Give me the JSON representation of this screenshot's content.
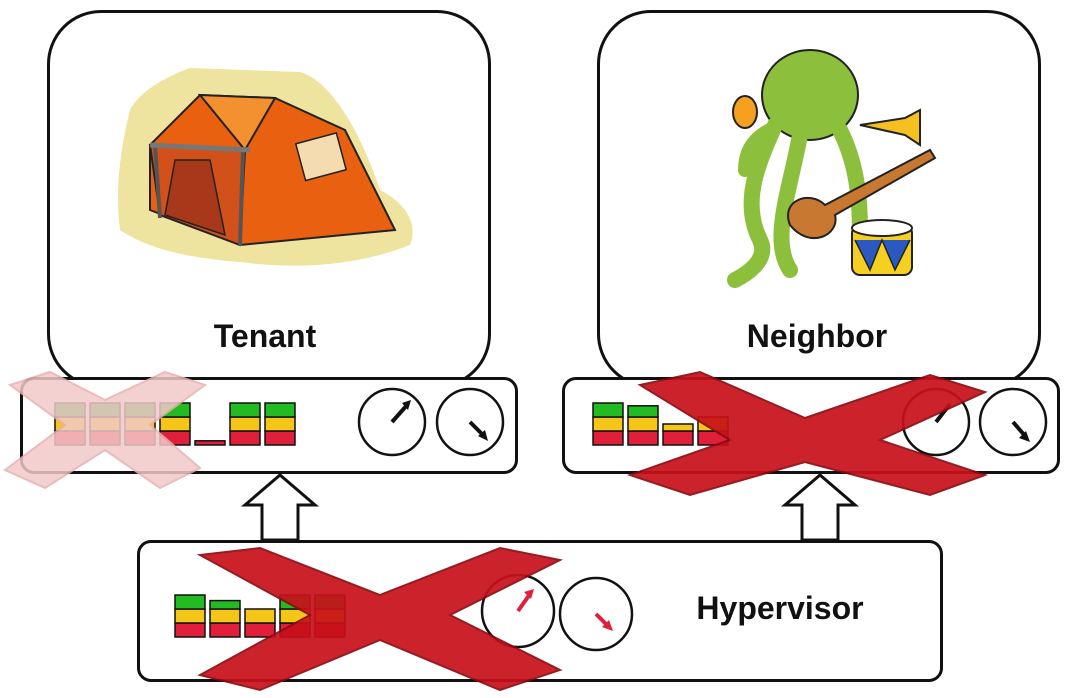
{
  "tenant": {
    "label": "Tenant",
    "icon": "tent-icon"
  },
  "neighbor": {
    "label": "Neighbor",
    "icon": "octopus-musician-icon"
  },
  "hypervisor": {
    "label": "Hypervisor"
  },
  "colors": {
    "green": "#22bb22",
    "yellow": "#f5c518",
    "red": "#e0203a",
    "cross_red": "#c8101a",
    "cross_faded": "#f2c9c9"
  },
  "tenant_meters": [
    {
      "green": 1,
      "yellow": 1,
      "red": 1
    },
    {
      "green": 1,
      "yellow": 1,
      "red": 1
    },
    {
      "green": 1,
      "yellow": 1,
      "red": 1
    },
    {
      "green": 1,
      "yellow": 1,
      "red": 1
    },
    {
      "green": 0,
      "yellow": 0,
      "red": 0.3
    },
    {
      "green": 1,
      "yellow": 1,
      "red": 1
    },
    {
      "green": 1,
      "yellow": 1,
      "red": 1
    }
  ],
  "neighbor_meters": [
    {
      "green": 1,
      "yellow": 1,
      "red": 1
    },
    {
      "green": 0.8,
      "yellow": 1,
      "red": 1
    },
    {
      "green": 0,
      "yellow": 0.5,
      "red": 1
    },
    {
      "green": 0,
      "yellow": 1,
      "red": 1
    }
  ],
  "hypervisor_meters": [
    {
      "green": 1,
      "yellow": 1,
      "red": 1
    },
    {
      "green": 0.6,
      "yellow": 1,
      "red": 1
    },
    {
      "green": 0,
      "yellow": 1,
      "red": 1
    },
    {
      "green": 1,
      "yellow": 1,
      "red": 1
    },
    {
      "green": 1,
      "yellow": 1,
      "red": 1
    }
  ]
}
